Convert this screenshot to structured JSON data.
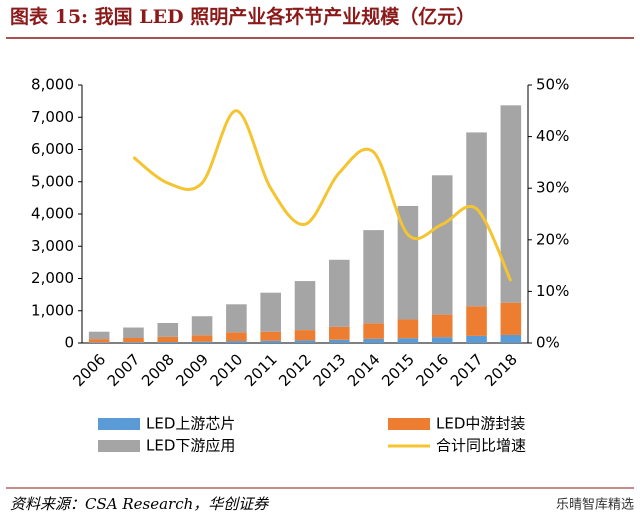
{
  "chart_data": {
    "type": "stacked-bar-line",
    "title": "图表 15: 我国 LED 照明产业各环节产业规模（亿元）",
    "source": "资料来源：CSA Research，华创证券",
    "watermark": "乐晴智库精选",
    "categories": [
      "2006",
      "2007",
      "2008",
      "2009",
      "2010",
      "2011",
      "2012",
      "2013",
      "2014",
      "2015",
      "2016",
      "2017",
      "2018"
    ],
    "series": [
      {
        "name": "LED上游芯片",
        "color": "#5b9bd5",
        "values": [
          20,
          25,
          30,
          40,
          60,
          70,
          80,
          100,
          130,
          150,
          180,
          220,
          250
        ]
      },
      {
        "name": "LED中游封装",
        "color": "#ed7d31",
        "values": [
          100,
          130,
          160,
          200,
          270,
          280,
          320,
          400,
          480,
          580,
          700,
          920,
          1000
        ]
      },
      {
        "name": "LED下游应用",
        "color": "#a5a5a5",
        "values": [
          230,
          325,
          430,
          590,
          870,
          1210,
          1520,
          2080,
          2890,
          3520,
          4320,
          5390,
          6120
        ]
      },
      {
        "name": "合计同比增速",
        "color": "#f5c431",
        "axis": "y2",
        "values": [
          null,
          36,
          31,
          31,
          45,
          30,
          23,
          33,
          37,
          21,
          23,
          26,
          12
        ]
      }
    ],
    "ylim": [
      0,
      8000
    ],
    "yticks": [
      0,
      {
        "value": 1000,
        "label": "1,000"
      },
      {
        "value": 2000,
        "label": "2,000"
      },
      {
        "value": 3000,
        "label": "3,000"
      },
      {
        "value": 4000,
        "label": "4,000"
      },
      {
        "value": 5000,
        "label": "5,000"
      },
      {
        "value": 6000,
        "label": "6,000"
      },
      {
        "value": 7000,
        "label": "7,000"
      },
      {
        "value": 8000,
        "label": "8,000"
      }
    ],
    "y2lim": [
      0,
      50
    ],
    "y2ticks": [
      {
        "value": 0,
        "label": "0%"
      },
      {
        "value": 10,
        "label": "10%"
      },
      {
        "value": 20,
        "label": "20%"
      },
      {
        "value": 30,
        "label": "30%"
      },
      {
        "value": 40,
        "label": "40%"
      },
      {
        "value": 50,
        "label": "50%"
      }
    ]
  }
}
